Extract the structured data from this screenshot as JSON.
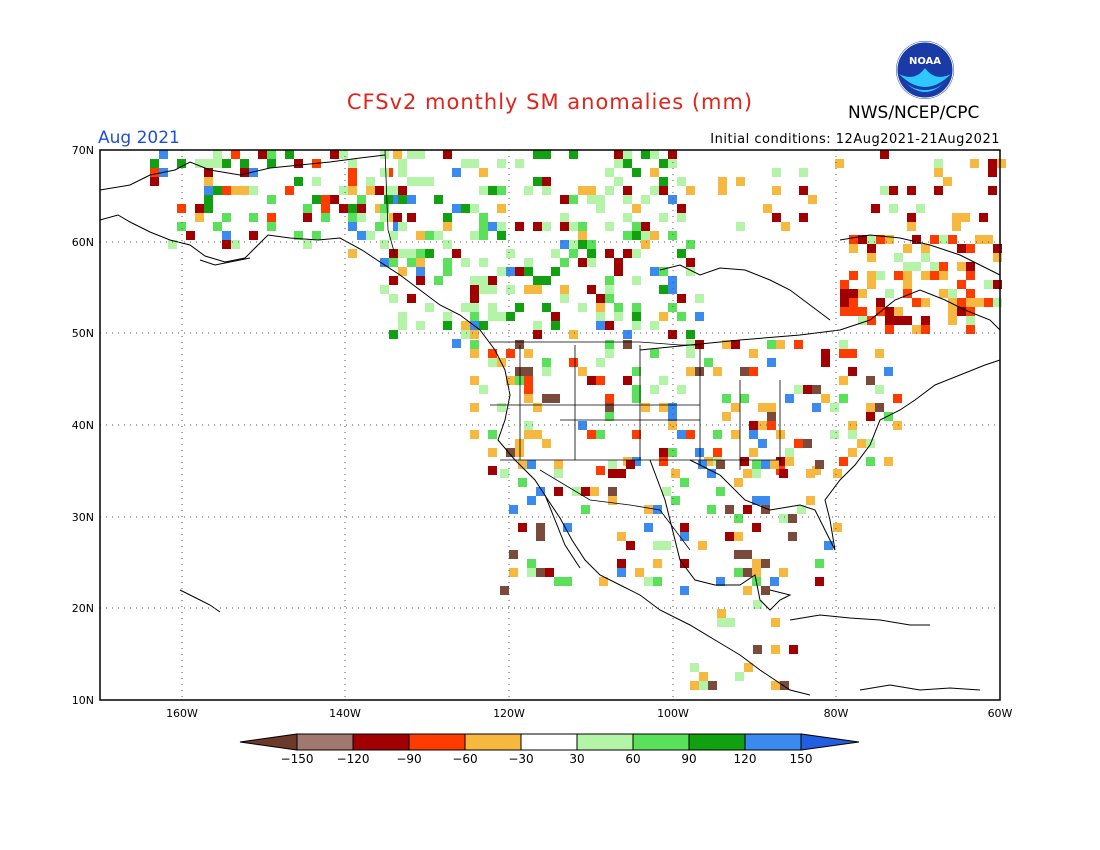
{
  "header": {
    "title": "CFSv2 monthly SM anomalies (mm)",
    "agency": "NWS/NCEP/CPC",
    "month": "Aug 2021",
    "init_conditions": "Initial conditions: 12Aug2021-21Aug2021",
    "logo_text": "NOAA"
  },
  "map": {
    "lat_labels": [
      "70N",
      "60N",
      "50N",
      "40N",
      "30N",
      "20N",
      "10N"
    ],
    "lon_labels": [
      "160W",
      "140W",
      "120W",
      "100W",
      "80W",
      "60W"
    ]
  },
  "colorbar": {
    "colors": [
      "#6b3a2a",
      "#a07870",
      "#a00000",
      "#ff3c00",
      "#f7b840",
      "#ffffff",
      "#b4f4a8",
      "#5ae05a",
      "#10a010",
      "#3a8af0",
      "#2060e0"
    ],
    "tick_labels": [
      "-150",
      "-120",
      "-90",
      "-60",
      "-30",
      "30",
      "60",
      "90",
      "120",
      "150"
    ]
  },
  "anomaly_colors": {
    "dark_brown": "#7a4a3a",
    "dark_red": "#a00000",
    "red": "#ff3c00",
    "orange": "#f7b840",
    "light_green": "#b4f4a8",
    "green": "#5ae05a",
    "dark_green": "#10a010",
    "blue": "#3a8af0"
  }
}
